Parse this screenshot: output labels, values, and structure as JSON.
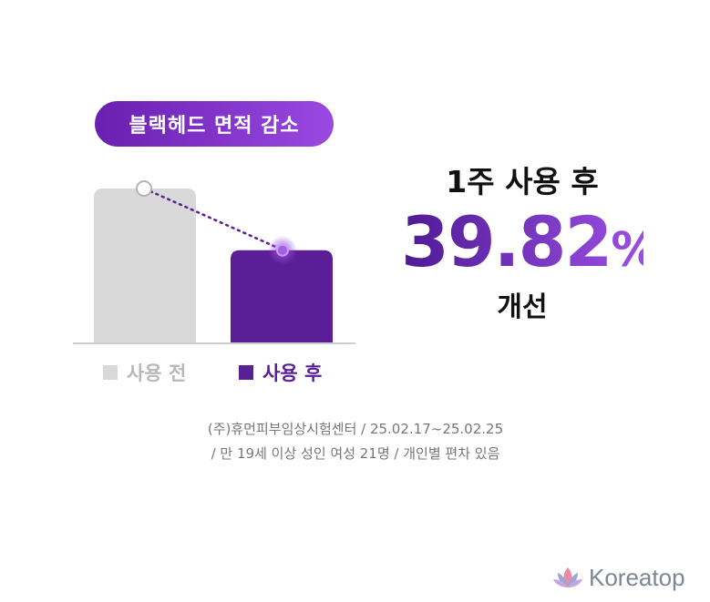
{
  "badge": {
    "label": "블랙헤드 면적 감소"
  },
  "chart_data": {
    "type": "bar",
    "categories": [
      "사용 전",
      "사용 후"
    ],
    "values": [
      100,
      60.18
    ],
    "ylim": [
      0,
      100
    ],
    "colors": [
      "#d9d9d9",
      "#5a1f96"
    ],
    "grid": false,
    "legend": "bottom"
  },
  "legend": {
    "before": "사용 전",
    "after": "사용 후"
  },
  "result": {
    "head": "1주 사용 후",
    "number": "39.82",
    "unit": "%",
    "label": "개선"
  },
  "notes": {
    "line1": "(주)휴먼피부임상시험센터 / 25.02.17~25.02.25",
    "line2": "/ 만 19세 이상 성인 여성 21명 / 개인별 편차 있음"
  },
  "brand": {
    "name": "Koreatop",
    "logo_icon": "lotus-icon"
  }
}
